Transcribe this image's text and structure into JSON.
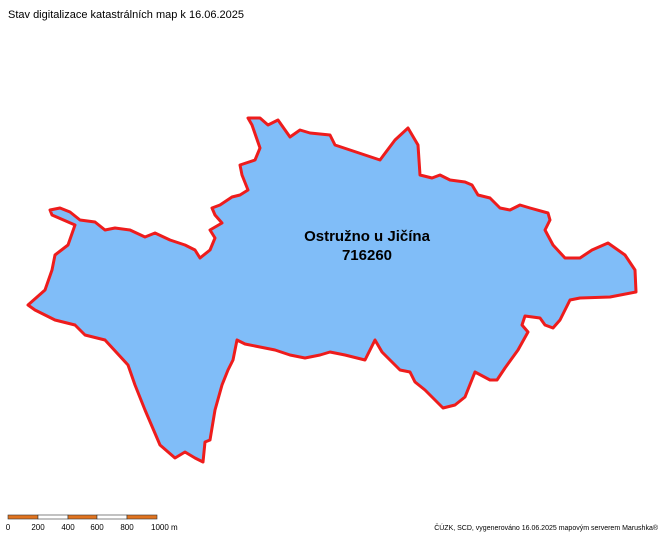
{
  "title": "Stav digitalizace katastrálních map k 16.06.2025",
  "parcel": {
    "name": "Ostružno u Jičína",
    "code": "716260"
  },
  "scale": {
    "labels": [
      "0",
      "200",
      "400",
      "600",
      "800",
      "1000 m"
    ]
  },
  "attribution": "ČÚZK, SCD, vygenerováno 16.06.2025 mapovým serverem Marushka®"
}
